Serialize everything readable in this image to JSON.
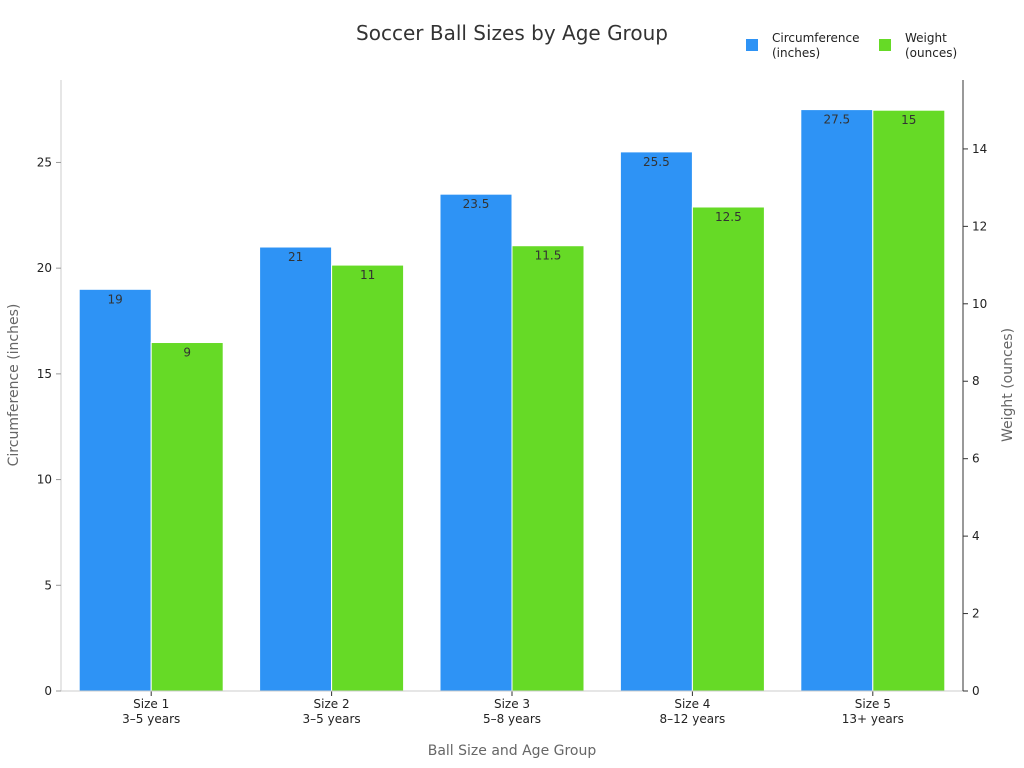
{
  "chart_data": {
    "type": "bar",
    "title": "Soccer Ball Sizes by Age Group",
    "xlabel": "Ball Size and Age Group",
    "ylabel": "Circumference (inches)",
    "y2label": "Weight (ounces)",
    "categories": [
      [
        "Size 1",
        "3–5 years"
      ],
      [
        "Size 2",
        "3–5 years"
      ],
      [
        "Size 3",
        "5–8 years"
      ],
      [
        "Size 4",
        "8–12 years"
      ],
      [
        "Size 5",
        "13+ years"
      ]
    ],
    "series": [
      {
        "name": [
          "Circumference",
          "(inches)"
        ],
        "axis": "left",
        "color": "#2e93f5",
        "values": [
          19,
          21,
          23.5,
          25.5,
          27.5
        ],
        "labels": [
          "19",
          "21",
          "23.5",
          "25.5",
          "27.5"
        ]
      },
      {
        "name": [
          "Weight",
          "(ounces)"
        ],
        "axis": "right",
        "color": "#66da26",
        "values": [
          9,
          11,
          11.5,
          12.5,
          15
        ],
        "labels": [
          "9",
          "11",
          "11.5",
          "12.5",
          "15"
        ]
      }
    ],
    "ylim": [
      0,
      28.9
    ],
    "y2lim": [
      0,
      15.78
    ],
    "yticks": [
      0,
      5,
      10,
      15,
      20,
      25
    ],
    "y2ticks": [
      0,
      2,
      4,
      6,
      8,
      10,
      12,
      14
    ],
    "grid": false,
    "legend": "top-right"
  }
}
